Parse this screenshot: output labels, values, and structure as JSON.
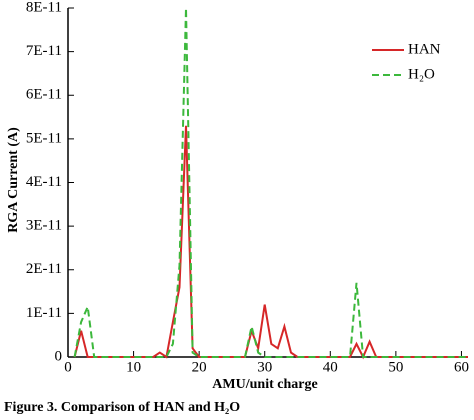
{
  "chart_data": {
    "type": "line",
    "xlabel": "AMU/unit charge",
    "ylabel": "RGA Current (A)",
    "caption": "Figure 3. Comparison of HAN and H₂O",
    "x": [
      1,
      2,
      3,
      4,
      13,
      14,
      15,
      16,
      17,
      18,
      19,
      20,
      27,
      28,
      29,
      30,
      31,
      32,
      33,
      34,
      35,
      43,
      44,
      45,
      46,
      47,
      61
    ],
    "series": [
      {
        "name": "HAN",
        "color": "#d62728",
        "dash": false,
        "values": [
          0,
          6e-12,
          0,
          0,
          0,
          1e-12,
          0,
          8e-12,
          1.6e-11,
          5.3e-11,
          2e-12,
          0,
          0,
          6e-12,
          2e-12,
          1.2e-11,
          3e-12,
          2e-12,
          7e-12,
          1e-12,
          0,
          0,
          3e-12,
          0,
          3.5e-12,
          0,
          0
        ]
      },
      {
        "name": "H₂O",
        "color": "#3cb83c",
        "dash": true,
        "values": [
          0,
          8e-12,
          1.15e-11,
          0,
          0,
          0,
          0,
          3e-12,
          2.1e-11,
          8e-11,
          1e-12,
          0,
          0,
          7e-12,
          1e-12,
          0,
          0,
          0,
          0,
          0,
          0,
          0,
          1.7e-11,
          0,
          0,
          0,
          0
        ]
      }
    ],
    "xlim": [
      0,
      61
    ],
    "xticks": [
      0,
      10,
      20,
      30,
      40,
      50,
      60
    ],
    "ylim": [
      0,
      8e-11
    ],
    "yticks": [
      0,
      {
        "value": 1e-11,
        "label": "1E-11"
      },
      {
        "value": 2e-11,
        "label": "2E-11"
      },
      {
        "value": 3e-11,
        "label": "3E-11"
      },
      {
        "value": 4e-11,
        "label": "4E-11"
      },
      {
        "value": 5e-11,
        "label": "5E-11"
      },
      {
        "value": 6e-11,
        "label": "6E-11"
      },
      {
        "value": 7e-11,
        "label": "7E-11"
      },
      {
        "value": 8e-11,
        "label": "8E-11"
      }
    ],
    "legend": "upper right",
    "grid": false
  }
}
